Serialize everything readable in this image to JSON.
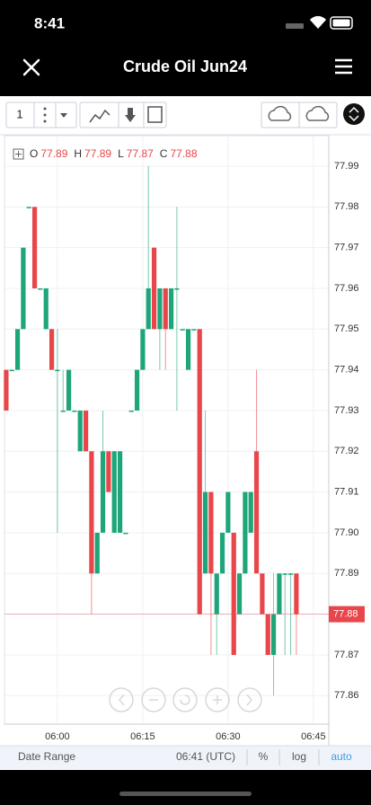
{
  "status_bar": {
    "time": "8:41"
  },
  "header": {
    "title": "Crude Oil Jun24"
  },
  "toolbar": {
    "interval": "1"
  },
  "legend": [
    {
      "label": "O",
      "value": 77.89
    },
    {
      "label": "H",
      "value": 77.89
    },
    {
      "label": "L",
      "value": 77.87
    },
    {
      "label": "C",
      "value": 77.88
    }
  ],
  "footer": {
    "range": "Date Range",
    "clock": "06:41 (UTC)",
    "percent": "%",
    "log": "log",
    "auto": "auto"
  },
  "chart_data": {
    "type": "candlestick",
    "x": [
      351,
      352,
      353,
      354,
      355,
      356,
      357,
      358,
      359,
      360,
      361,
      362,
      363,
      364,
      365,
      366,
      367,
      368,
      369,
      370,
      371,
      372,
      373,
      374,
      375,
      376,
      377,
      378,
      379,
      380,
      381,
      382,
      383,
      384,
      385,
      386,
      387,
      388,
      389,
      390,
      391,
      392,
      393,
      394,
      395,
      396,
      397,
      398,
      399,
      400,
      401,
      402
    ],
    "open": [
      77.94,
      77.94,
      77.94,
      77.95,
      77.98,
      77.98,
      77.96,
      77.95,
      77.95,
      77.94,
      77.93,
      77.93,
      77.93,
      77.92,
      77.93,
      77.92,
      77.89,
      77.9,
      77.92,
      77.9,
      77.9,
      77.9,
      77.93,
      77.93,
      77.94,
      77.95,
      77.97,
      77.95,
      77.96,
      77.95,
      77.96,
      77.95,
      77.94,
      77.95,
      77.95,
      77.89,
      77.91,
      77.88,
      77.89,
      77.9,
      77.9,
      77.88,
      77.89,
      77.9,
      77.92,
      77.89,
      77.88,
      77.87,
      77.88,
      77.89,
      77.89,
      77.89
    ],
    "high": [
      77.94,
      77.94,
      77.95,
      77.97,
      77.98,
      77.98,
      77.96,
      77.96,
      77.95,
      77.95,
      77.94,
      77.94,
      77.93,
      77.93,
      77.93,
      77.92,
      77.9,
      77.93,
      77.92,
      77.92,
      77.92,
      77.9,
      77.93,
      77.94,
      77.95,
      77.99,
      77.97,
      77.96,
      77.96,
      77.96,
      77.98,
      77.95,
      77.95,
      77.95,
      77.95,
      77.93,
      77.91,
      77.89,
      77.9,
      77.91,
      77.9,
      77.89,
      77.91,
      77.91,
      77.94,
      77.89,
      77.88,
      77.89,
      77.89,
      77.89,
      77.89,
      77.89
    ],
    "low": [
      77.93,
      77.94,
      77.94,
      77.95,
      77.98,
      77.96,
      77.96,
      77.95,
      77.94,
      77.9,
      77.93,
      77.93,
      77.93,
      77.92,
      77.92,
      77.88,
      77.89,
      77.9,
      77.91,
      77.9,
      77.9,
      77.9,
      77.93,
      77.93,
      77.94,
      77.95,
      77.95,
      77.94,
      77.94,
      77.95,
      77.93,
      77.95,
      77.94,
      77.95,
      77.88,
      77.89,
      77.87,
      77.87,
      77.89,
      77.9,
      77.87,
      77.88,
      77.89,
      77.9,
      77.89,
      77.88,
      77.87,
      77.86,
      77.88,
      77.87,
      77.87,
      77.87
    ],
    "close": [
      77.93,
      77.94,
      77.95,
      77.97,
      77.98,
      77.96,
      77.96,
      77.96,
      77.94,
      77.94,
      77.93,
      77.94,
      77.93,
      77.93,
      77.92,
      77.89,
      77.9,
      77.92,
      77.91,
      77.92,
      77.92,
      77.9,
      77.93,
      77.94,
      77.95,
      77.96,
      77.95,
      77.96,
      77.95,
      77.96,
      77.96,
      77.95,
      77.95,
      77.95,
      77.88,
      77.91,
      77.89,
      77.89,
      77.9,
      77.91,
      77.87,
      77.89,
      77.91,
      77.91,
      77.89,
      77.88,
      77.87,
      77.88,
      77.89,
      77.89,
      77.89,
      77.88
    ],
    "up_color": "#1ea57a",
    "down_color": "#e8464a",
    "last_price": 77.88,
    "xlim": [
      350.7,
      407.7
    ],
    "xticks": [
      {
        "value": 360,
        "label": "06:00"
      },
      {
        "value": 375,
        "label": "06:15"
      },
      {
        "value": 390,
        "label": "06:30"
      },
      {
        "value": 405,
        "label": "06:45"
      }
    ],
    "ylim": [
      77.853,
      77.9975
    ],
    "yticks": [
      77.86,
      77.87,
      77.88,
      77.89,
      {
        "value": 77.9,
        "label": "77.90"
      },
      77.91,
      77.92,
      77.93,
      77.94,
      77.95,
      77.96,
      77.97,
      77.98,
      77.99
    ],
    "grid": true
  }
}
